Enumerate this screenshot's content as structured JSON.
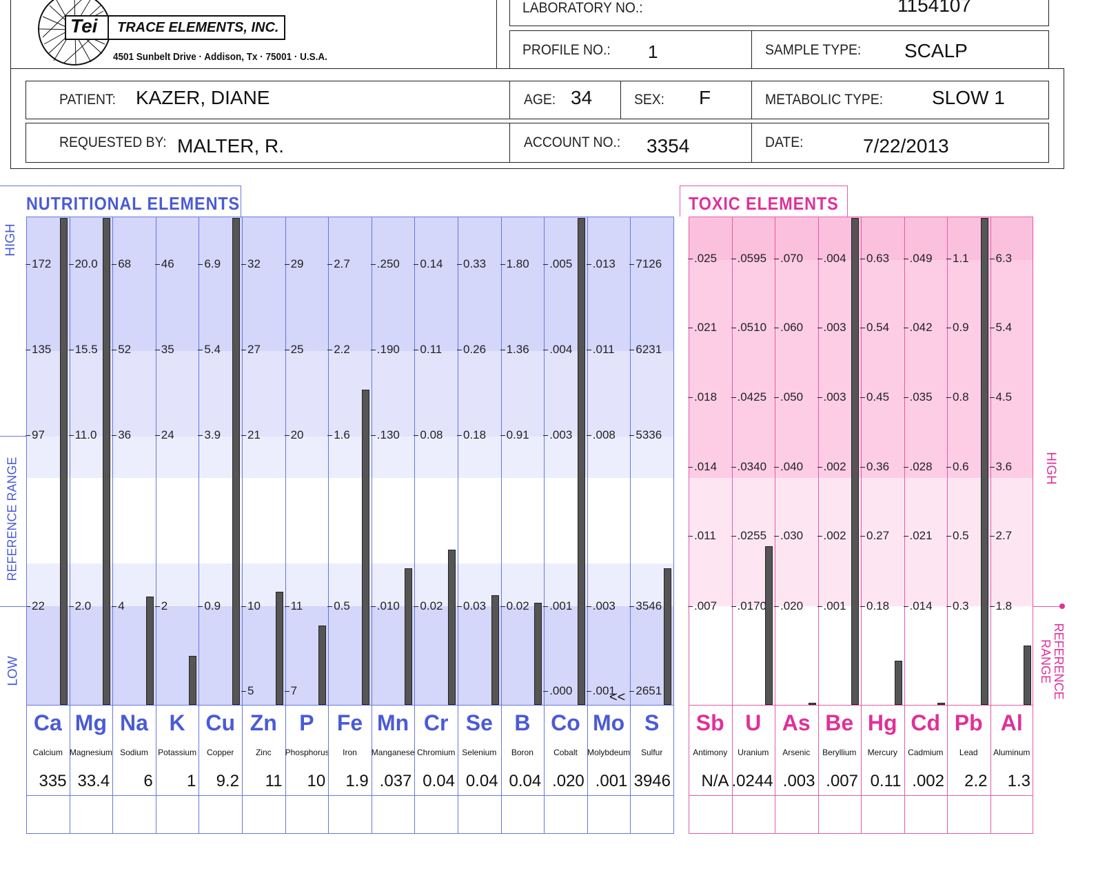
{
  "company": {
    "logo_text": "Tei",
    "name": "TRACE ELEMENTS, INC.",
    "address": "4501 Sunbelt Drive · Addison, Tx · 75001 · U.S.A."
  },
  "header": {
    "lab_no_label": "LABORATORY NO.:",
    "lab_no": "1154107",
    "profile_no_label": "PROFILE NO.:",
    "profile_no": "1",
    "sample_type_label": "SAMPLE TYPE:",
    "sample_type": "SCALP",
    "patient_label": "PATIENT:",
    "patient": "KAZER, DIANE",
    "age_label": "AGE:",
    "age": "34",
    "sex_label": "SEX:",
    "sex": "F",
    "metabolic_label": "METABOLIC TYPE:",
    "metabolic": "SLOW 1",
    "requested_label": "REQUESTED BY:",
    "requested": "MALTER, R.",
    "account_label": "ACCOUNT NO.:",
    "account": "3354",
    "date_label": "DATE:",
    "date": "7/22/2013"
  },
  "nutritional": {
    "title": "NUTRITIONAL  ELEMENTS",
    "side_high": "HIGH",
    "side_ref": "REFERENCE RANGE",
    "side_low": "LOW",
    "colors": {
      "line": "#6677dd",
      "text": "#4a5bd6",
      "band_dark": "#d4d6fa",
      "band_light": "#e8e9fc"
    },
    "mo_marker": "<<"
  },
  "toxic": {
    "title": "TOXIC  ELEMENTS",
    "side_high": "HIGH",
    "side_ref": "REFERENCE RANGE",
    "colors": {
      "line": "#e45aa8",
      "text": "#e0309a",
      "band_dark": "#fbc9e3",
      "band_light": "#fde3f1"
    }
  },
  "chart_data": [
    {
      "type": "bar",
      "title": "NUTRITIONAL  ELEMENTS",
      "elements": [
        {
          "sym": "Ca",
          "name": "Calcium",
          "result": "335",
          "ticks": [
            "172",
            "135",
            "97",
            "22"
          ],
          "level": 1.0
        },
        {
          "sym": "Mg",
          "name": "Magnesium",
          "result": "33.4",
          "ticks": [
            "20.0",
            "15.5",
            "11.0",
            "2.0"
          ],
          "level": 1.0
        },
        {
          "sym": "Na",
          "name": "Sodium",
          "result": "6",
          "ticks": [
            "68",
            "52",
            "36",
            "4"
          ],
          "level": 0.223
        },
        {
          "sym": "K",
          "name": "Potassium",
          "result": "1",
          "ticks": [
            "46",
            "35",
            "24",
            "2"
          ],
          "level": 0.1
        },
        {
          "sym": "Cu",
          "name": "Copper",
          "result": "9.2",
          "ticks": [
            "6.9",
            "5.4",
            "3.9",
            "0.9"
          ],
          "level": 1.0
        },
        {
          "sym": "Zn",
          "name": "Zinc",
          "result": "11",
          "ticks": [
            "32",
            "27",
            "21",
            "10",
            "5"
          ],
          "level": 0.233
        },
        {
          "sym": "P",
          "name": "Phosphorus",
          "result": "10",
          "ticks": [
            "29",
            "25",
            "20",
            "11",
            "7"
          ],
          "level": 0.163
        },
        {
          "sym": "Fe",
          "name": "Iron",
          "result": "1.9",
          "ticks": [
            "2.7",
            "2.2",
            "1.6",
            "0.5"
          ],
          "level": 0.648
        },
        {
          "sym": "Mn",
          "name": "Manganese",
          "result": ".037",
          "ticks": [
            ".250",
            ".190",
            ".130",
            ".010"
          ],
          "level": 0.281
        },
        {
          "sym": "Cr",
          "name": "Chromium",
          "result": "0.04",
          "ticks": [
            "0.14",
            "0.11",
            "0.08",
            "0.02"
          ],
          "level": 0.318
        },
        {
          "sym": "Se",
          "name": "Selenium",
          "result": "0.04",
          "ticks": [
            "0.33",
            "0.26",
            "0.18",
            "0.03"
          ],
          "level": 0.225
        },
        {
          "sym": "B",
          "name": "Boron",
          "result": "0.04",
          "ticks": [
            "1.80",
            "1.36",
            "0.91",
            "0.02"
          ],
          "level": 0.21
        },
        {
          "sym": "Co",
          "name": "Cobalt",
          "result": ".020",
          "ticks": [
            ".005",
            ".004",
            ".003",
            ".001",
            ".000"
          ],
          "level": 1.0
        },
        {
          "sym": "Mo",
          "name": "Molybdeum",
          "result": ".001",
          "ticks": [
            ".013",
            ".011",
            ".008",
            ".003",
            ".001"
          ],
          "level": 0.0
        },
        {
          "sym": "S",
          "name": "Sulfur",
          "result": "3946",
          "ticks": [
            "7126",
            "6231",
            "5336",
            "3546",
            "2651"
          ],
          "level": 0.28
        }
      ]
    },
    {
      "type": "bar",
      "title": "TOXIC  ELEMENTS",
      "elements": [
        {
          "sym": "Sb",
          "name": "Antimony",
          "result": "N/A",
          "ticks": [
            ".025",
            ".021",
            ".018",
            ".014",
            ".011",
            ".007"
          ],
          "level": 0.0
        },
        {
          "sym": "U",
          "name": "Uranium",
          "result": ".0244",
          "ticks": [
            ".0595",
            ".0510",
            ".0425",
            ".0340",
            ".0255",
            ".0170"
          ],
          "level": 0.326
        },
        {
          "sym": "As",
          "name": "Arsenic",
          "result": ".003",
          "ticks": [
            ".070",
            ".060",
            ".050",
            ".040",
            ".030",
            ".020"
          ],
          "level": 0.004
        },
        {
          "sym": "Be",
          "name": "Beryllium",
          "result": ".007",
          "ticks": [
            ".004",
            ".003",
            ".003",
            ".002",
            ".002",
            ".001"
          ],
          "level": 1.0
        },
        {
          "sym": "Hg",
          "name": "Mercury",
          "result": "0.11",
          "ticks": [
            "0.63",
            "0.54",
            "0.45",
            "0.36",
            "0.27",
            "0.18"
          ],
          "level": 0.09
        },
        {
          "sym": "Cd",
          "name": "Cadmium",
          "result": ".002",
          "ticks": [
            ".049",
            ".042",
            ".035",
            ".028",
            ".021",
            ".014"
          ],
          "level": 0.004
        },
        {
          "sym": "Pb",
          "name": "Lead",
          "result": "2.2",
          "ticks": [
            "1.1",
            "0.9",
            "0.8",
            "0.6",
            "0.5",
            "0.3"
          ],
          "level": 1.0
        },
        {
          "sym": "Al",
          "name": "Aluminum",
          "result": "1.3",
          "ticks": [
            "6.3",
            "5.4",
            "4.5",
            "3.6",
            "2.7",
            "1.8"
          ],
          "level": 0.122
        }
      ]
    }
  ]
}
